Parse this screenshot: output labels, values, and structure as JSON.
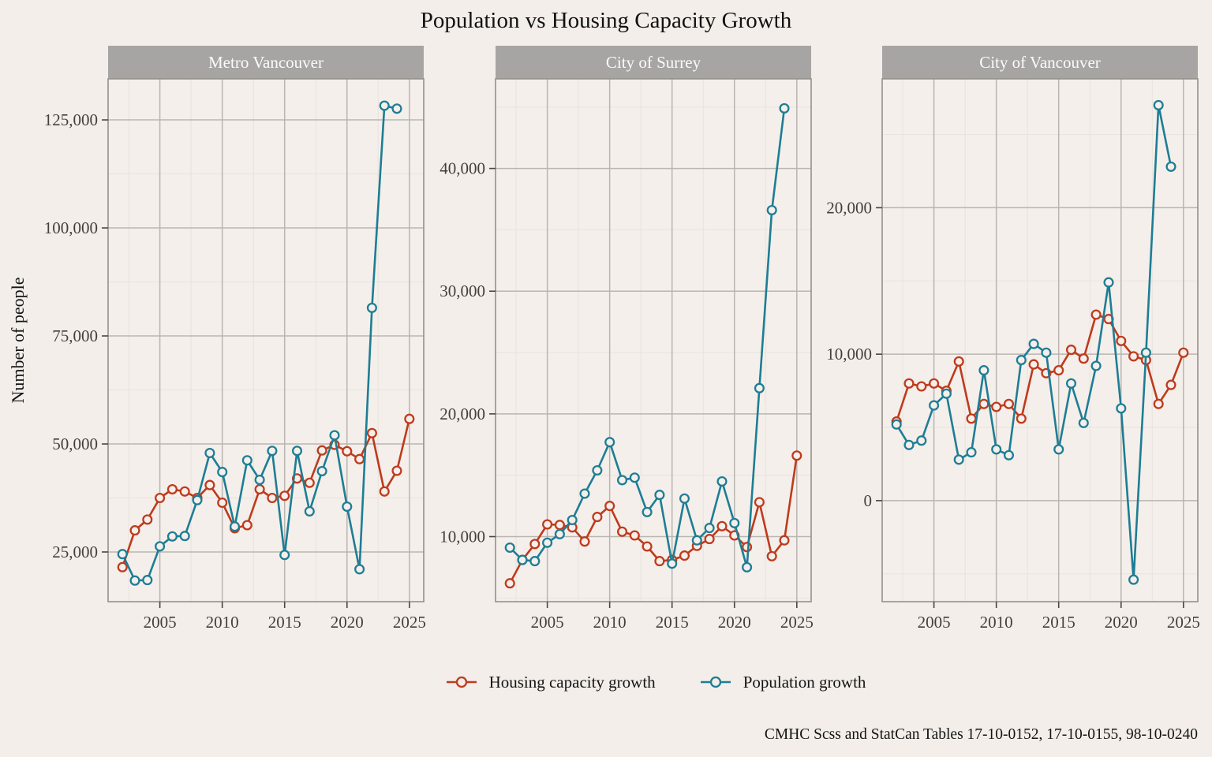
{
  "title": "Population vs Housing Capacity Growth",
  "y_axis_title": "Number of people",
  "caption": "CMHC Scss and StatCan Tables 17-10-0152, 17-10-0155, 98-10-0240",
  "legend": {
    "items": [
      {
        "key": "housing",
        "label": "Housing capacity growth"
      },
      {
        "key": "population",
        "label": "Population growth"
      }
    ]
  },
  "colors": {
    "housing": "#bf3a1d",
    "population": "#1e7d95",
    "page_bg": "#f3eee9",
    "panel_bg": "#f4efea",
    "strip_bg": "#a7a5a3",
    "strip_text": "#fbfbfb",
    "grid_major": "#b9b5b1",
    "grid_minor": "#e8e3de",
    "panel_border": "#95908a",
    "axis_text": "#443f39",
    "tick_mark": "#4a4541"
  },
  "chart_data": {
    "type": "line",
    "title": "Population vs Housing Capacity Growth",
    "ylabel": "Number of people",
    "legend_position": "bottom",
    "grid": "major+minor",
    "x_domain": [
      2000.85,
      2026.15
    ],
    "x_ticks": [
      2005,
      2010,
      2015,
      2020,
      2025
    ],
    "x_minor": [
      2002.5,
      2007.5,
      2012.5,
      2017.5,
      2022.5
    ],
    "facets": [
      {
        "name": "Metro Vancouver",
        "y_domain": [
          13500,
          134500
        ],
        "y_ticks": [
          25000,
          50000,
          75000,
          100000,
          125000
        ],
        "y_minor": [
          37500,
          62500,
          87500,
          112500
        ],
        "series": [
          {
            "name": "Housing capacity growth",
            "color_key": "housing",
            "years": [
              2002,
              2003,
              2004,
              2005,
              2006,
              2007,
              2008,
              2009,
              2010,
              2011,
              2012,
              2013,
              2014,
              2015,
              2016,
              2017,
              2018,
              2019,
              2020,
              2021,
              2022,
              2023,
              2024,
              2025
            ],
            "values": [
              21500,
              30000,
              32500,
              37500,
              39500,
              39000,
              37500,
              40500,
              36400,
              30500,
              31200,
              39500,
              37500,
              38000,
              42000,
              41000,
              48500,
              49800,
              48300,
              46500,
              52500,
              39000,
              43800,
              55800
            ]
          },
          {
            "name": "Population growth",
            "color_key": "population",
            "years": [
              2002,
              2003,
              2004,
              2005,
              2006,
              2007,
              2008,
              2009,
              2010,
              2011,
              2012,
              2013,
              2014,
              2015,
              2016,
              2017,
              2018,
              2019,
              2020,
              2021,
              2022,
              2023,
              2024
            ],
            "values": [
              24500,
              18400,
              18500,
              26300,
              28600,
              28700,
              37000,
              47900,
              43500,
              30900,
              46200,
              41700,
              48400,
              24300,
              48400,
              34400,
              43700,
              52000,
              35500,
              21000,
              81500,
              128300,
              127600
            ]
          }
        ]
      },
      {
        "name": "City of Surrey",
        "y_domain": [
          4700,
          47300
        ],
        "y_ticks": [
          10000,
          20000,
          30000,
          40000
        ],
        "y_minor": [
          5000,
          15000,
          25000,
          35000,
          45000
        ],
        "series": [
          {
            "name": "Housing capacity growth",
            "color_key": "housing",
            "years": [
              2002,
              2003,
              2004,
              2005,
              2006,
              2007,
              2008,
              2009,
              2010,
              2011,
              2012,
              2013,
              2014,
              2015,
              2016,
              2017,
              2018,
              2019,
              2020,
              2021,
              2022,
              2023,
              2024,
              2025
            ],
            "values": [
              6200,
              8100,
              9400,
              11000,
              10950,
              10750,
              9600,
              11600,
              12500,
              10400,
              10100,
              9200,
              8000,
              8100,
              8450,
              9250,
              9800,
              10850,
              10100,
              9150,
              12800,
              8400,
              9700,
              16600
            ]
          },
          {
            "name": "Population growth",
            "color_key": "population",
            "years": [
              2002,
              2003,
              2004,
              2005,
              2006,
              2007,
              2008,
              2009,
              2010,
              2011,
              2012,
              2013,
              2014,
              2015,
              2016,
              2017,
              2018,
              2019,
              2020,
              2021,
              2022,
              2023,
              2024
            ],
            "values": [
              9100,
              8100,
              8000,
              9500,
              10200,
              11350,
              13500,
              15400,
              17700,
              14600,
              14800,
              12000,
              13400,
              7800,
              13100,
              9700,
              10700,
              14500,
              11100,
              7500,
              22100,
              36600,
              44900
            ]
          }
        ]
      },
      {
        "name": "City of Vancouver",
        "y_domain": [
          -6900,
          28800
        ],
        "y_ticks": [
          0,
          10000,
          20000
        ],
        "y_minor": [
          -5000,
          5000,
          15000,
          25000
        ],
        "series": [
          {
            "name": "Housing capacity growth",
            "color_key": "housing",
            "years": [
              2002,
              2003,
              2004,
              2005,
              2006,
              2007,
              2008,
              2009,
              2010,
              2011,
              2012,
              2013,
              2014,
              2015,
              2016,
              2017,
              2018,
              2019,
              2020,
              2021,
              2022,
              2023,
              2024,
              2025
            ],
            "values": [
              5400,
              8000,
              7800,
              8000,
              7500,
              9500,
              5600,
              6600,
              6400,
              6600,
              5600,
              9300,
              8700,
              8900,
              10300,
              9700,
              12700,
              12400,
              10900,
              9850,
              9600,
              6600,
              7900,
              10100
            ]
          },
          {
            "name": "Population growth",
            "color_key": "population",
            "years": [
              2002,
              2003,
              2004,
              2005,
              2006,
              2007,
              2008,
              2009,
              2010,
              2011,
              2012,
              2013,
              2014,
              2015,
              2016,
              2017,
              2018,
              2019,
              2020,
              2021,
              2022,
              2023,
              2024
            ],
            "values": [
              5200,
              3800,
              4100,
              6500,
              7300,
              2800,
              3300,
              8900,
              3500,
              3100,
              9600,
              10700,
              10100,
              3500,
              8000,
              5300,
              9200,
              14900,
              6300,
              -5400,
              10100,
              27000,
              22800
            ]
          }
        ]
      }
    ]
  }
}
